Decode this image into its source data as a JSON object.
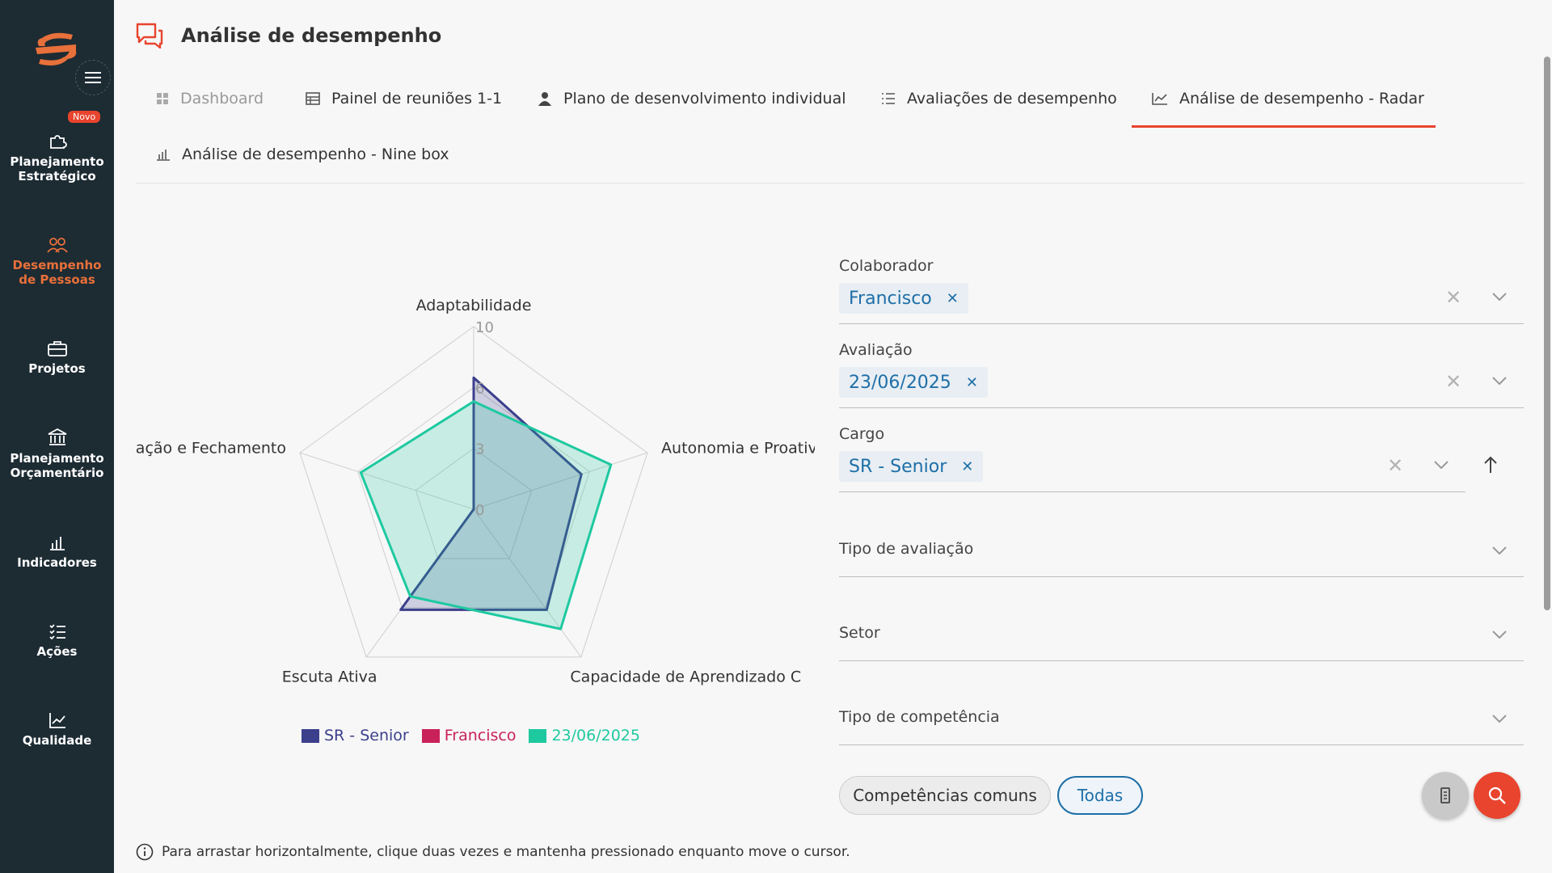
{
  "colors": {
    "accent": "#e8442e",
    "sidebar_bg": "#1d2b33",
    "link_blue": "#1e6fa8"
  },
  "sidebar": {
    "badge": "Novo",
    "items": [
      {
        "line1": "Planejamento",
        "line2": "Estratégico",
        "icon": "puzzle-icon"
      },
      {
        "line1": "Desempenho",
        "line2": "de Pessoas",
        "icon": "people-icon",
        "active": true
      },
      {
        "line1": "Projetos",
        "line2": "",
        "icon": "briefcase-icon"
      },
      {
        "line1": "Planejamento",
        "line2": "Orçamentário",
        "icon": "bank-icon"
      },
      {
        "line1": "Indicadores",
        "line2": "",
        "icon": "bar-chart-icon"
      },
      {
        "line1": "Ações",
        "line2": "",
        "icon": "checklist-icon"
      },
      {
        "line1": "Qualidade",
        "line2": "",
        "icon": "trend-icon"
      }
    ]
  },
  "header": {
    "title": "Análise de desempenho"
  },
  "tabs": [
    {
      "label": "Dashboard",
      "icon": "grid-icon"
    },
    {
      "label": "Painel de reuniões 1-1",
      "icon": "table-icon"
    },
    {
      "label": "Plano de desenvolvimento individual",
      "icon": "person-icon"
    },
    {
      "label": "Avaliações de desempenho",
      "icon": "list-icon"
    },
    {
      "label": "Análise de desempenho - Radar",
      "icon": "line-chart-icon",
      "active": true
    },
    {
      "label": "Análise de desempenho - Nine box",
      "icon": "bar-chart-icon"
    }
  ],
  "chart_data": {
    "type": "radar",
    "axes": [
      "Adaptabilidade",
      "Autonomia e Proativ",
      "Capacidade de Aprendizado C",
      "Escuta Ativa",
      "ciação e Fechamento"
    ],
    "scale_labels": [
      "0",
      "3",
      "6",
      "10"
    ],
    "rmax": 10,
    "series": [
      {
        "name": "SR - Senior",
        "color": "#3b3f8c",
        "values": [
          7.2,
          6.2,
          6.8,
          6.8,
          0
        ]
      },
      {
        "name": "Francisco",
        "color": "#c9215a",
        "values": [
          0,
          0,
          0,
          0,
          0
        ]
      },
      {
        "name": "23/06/2025",
        "color": "#1ec9a0",
        "values": [
          5.9,
          7.9,
          8.1,
          5.9,
          6.5
        ]
      }
    ]
  },
  "filters": {
    "colaborador": {
      "label": "Colaborador",
      "chip": "Francisco"
    },
    "avaliacao": {
      "label": "Avaliação",
      "chip": "23/06/2025"
    },
    "cargo": {
      "label": "Cargo",
      "chip": "SR - Senior"
    },
    "tipo_avaliacao": {
      "label": "Tipo de avaliação"
    },
    "setor": {
      "label": "Setor"
    },
    "tipo_competencia": {
      "label": "Tipo de competência"
    }
  },
  "buttons": {
    "common": "Competências comuns",
    "all": "Todas"
  },
  "hint": "Para arrastar horizontalmente, clique duas vezes e mantenha pressionado enquanto move o cursor."
}
